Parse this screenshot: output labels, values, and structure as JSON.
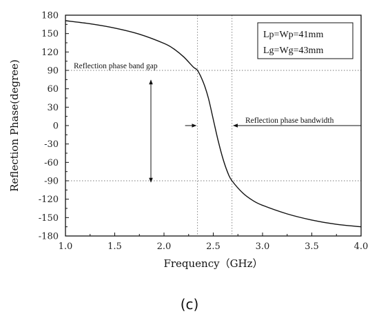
{
  "chart_data": {
    "type": "line",
    "xlabel": "Frequency（GHz）",
    "ylabel": "Reflection Phase(degree)",
    "xlim": [
      1.0,
      4.0
    ],
    "ylim": [
      -180,
      180
    ],
    "x_ticks": [
      "1.0",
      "1.5",
      "2.0",
      "2.5",
      "3.0",
      "3.5",
      "4.0"
    ],
    "y_ticks": [
      "180",
      "150",
      "120",
      "90",
      "60",
      "30",
      "0",
      "-30",
      "-60",
      "-90",
      "-120",
      "-150",
      "-180"
    ],
    "series": [
      {
        "x": [
          1.0,
          1.25,
          1.5,
          1.75,
          2.0,
          2.1,
          2.2,
          2.3,
          2.34,
          2.4,
          2.45,
          2.5,
          2.55,
          2.6,
          2.65,
          2.69,
          2.8,
          2.9,
          3.0,
          3.25,
          3.5,
          3.75,
          4.0
        ],
        "y": [
          171,
          166,
          159,
          149,
          134,
          125,
          112,
          95,
          90,
          70,
          45,
          10,
          -25,
          -55,
          -78,
          -90,
          -110,
          -122,
          -130,
          -144,
          -154,
          -161,
          -165
        ]
      }
    ],
    "legend_lines": [
      "Lp=Wp=41mm",
      "Lg=Wg=43mm"
    ],
    "legend_position": "top-right",
    "reference_lines": {
      "horizontal": [
        90,
        -90
      ],
      "vertical": [
        2.34,
        2.69
      ]
    },
    "annotations": {
      "band_gap": "Reflection phase band gap",
      "bandwidth": "Reflection phase bandwidth"
    },
    "grid": false
  },
  "caption": "(c)"
}
